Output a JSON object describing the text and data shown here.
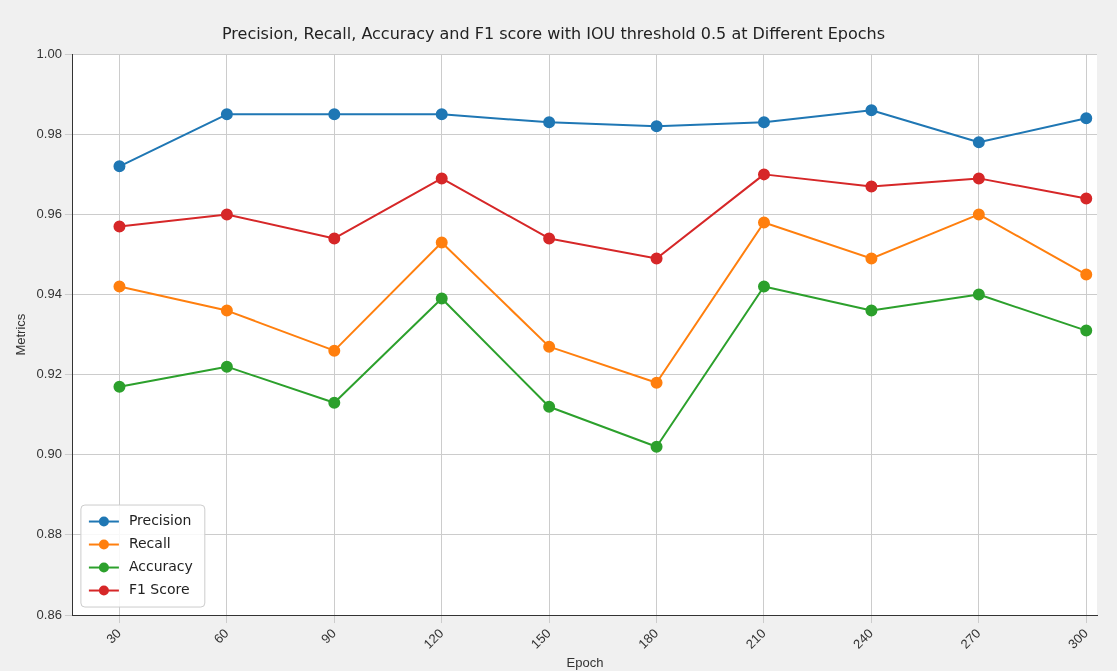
{
  "chart_data": {
    "type": "line",
    "title": "Precision, Recall, Accuracy and F1 score with IOU threshold 0.5 at Different Epochs",
    "xlabel": "Epoch",
    "ylabel": "Metrics",
    "x": [
      30,
      60,
      90,
      120,
      150,
      180,
      210,
      240,
      270,
      300
    ],
    "xlim": [
      17,
      303
    ],
    "xticks": [
      30,
      60,
      90,
      120,
      150,
      180,
      210,
      240,
      270,
      300
    ],
    "ylim": [
      0.86,
      1
    ],
    "yticks": [
      0.86,
      0.88,
      {
        "value": 0.9,
        "label": "0.90"
      },
      0.92,
      0.94,
      0.96,
      0.98,
      {
        "value": 1,
        "label": "1.00"
      }
    ],
    "series": [
      {
        "name": "Precision",
        "color": "#1f77b4",
        "values": [
          0.972,
          0.985,
          0.985,
          0.985,
          0.983,
          0.982,
          0.983,
          0.986,
          0.978,
          0.984
        ]
      },
      {
        "name": "Recall",
        "color": "#ff7f0e",
        "values": [
          0.942,
          0.936,
          0.926,
          0.953,
          0.927,
          0.918,
          0.958,
          0.949,
          0.96,
          0.945
        ]
      },
      {
        "name": "Accuracy",
        "color": "#2ca02c",
        "values": [
          0.917,
          0.922,
          0.913,
          0.939,
          0.912,
          0.902,
          0.942,
          0.936,
          0.94,
          0.931
        ]
      },
      {
        "name": "F1 Score",
        "color": "#d62728",
        "values": [
          0.957,
          0.96,
          0.954,
          0.969,
          0.954,
          0.949,
          0.97,
          0.967,
          0.969,
          0.964
        ]
      }
    ],
    "grid": true,
    "legend": "bottom left",
    "marker": "circle",
    "line_style": "solid"
  }
}
